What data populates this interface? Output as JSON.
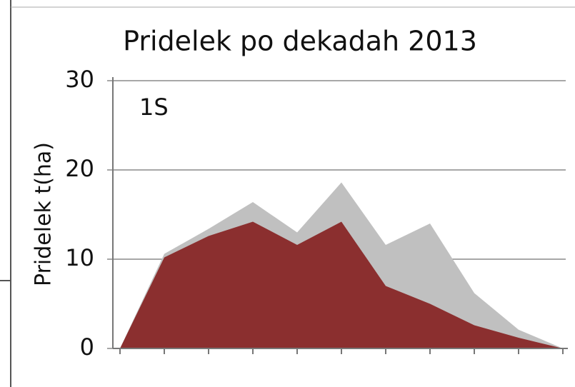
{
  "chart_data": {
    "type": "area",
    "title": "Pridelek po dekadah 2013",
    "y_label": "Pridelek t(ha)",
    "annotation": "1S",
    "categories": [
      null,
      null,
      null,
      null,
      null,
      null,
      null,
      null,
      null,
      null,
      null
    ],
    "series": [
      {
        "color": "#c0c0c0",
        "values": [
          0,
          10.6,
          13.4,
          16.4,
          13.0,
          18.6,
          11.6,
          14.0,
          6.2,
          2.1,
          0
        ]
      },
      {
        "color": "#8b2f2f",
        "values": [
          0,
          10.2,
          12.6,
          14.2,
          11.6,
          14.2,
          7.0,
          5.0,
          2.6,
          1.2,
          0
        ]
      }
    ],
    "ylim": [
      0,
      30
    ],
    "yticks": [
      0,
      10,
      20,
      30
    ],
    "grid": true
  }
}
